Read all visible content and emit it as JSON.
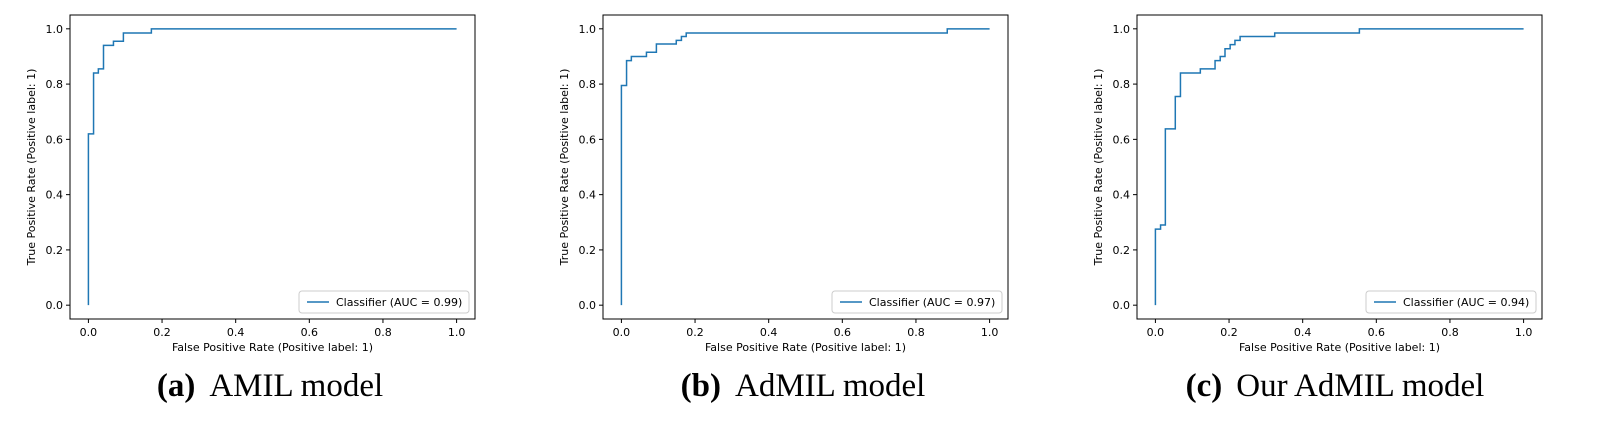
{
  "colors": {
    "curve": "#1f77b4",
    "axes": "#000000",
    "legend_border": "#cccccc"
  },
  "chart_data": [
    {
      "type": "line",
      "caption_letter": "(a)",
      "caption_text": "AMIL model",
      "xlabel": "False Positive Rate (Positive label: 1)",
      "ylabel": "True Positive Rate (Positive label: 1)",
      "xlim": [
        -0.05,
        1.05
      ],
      "ylim": [
        -0.05,
        1.05
      ],
      "xticks": [
        "0.0",
        "0.2",
        "0.4",
        "0.6",
        "0.8",
        "1.0"
      ],
      "yticks": [
        "0.0",
        "0.2",
        "0.4",
        "0.6",
        "0.8",
        "1.0"
      ],
      "grid": false,
      "legend_position": "lower right",
      "series": [
        {
          "name": "Classifier (AUC = 0.99)",
          "x": [
            0.0,
            0.0,
            0.014,
            0.014,
            0.027,
            0.027,
            0.041,
            0.041,
            0.068,
            0.068,
            0.095,
            0.095,
            0.171,
            0.171,
            1.0
          ],
          "y": [
            0.0,
            0.62,
            0.62,
            0.84,
            0.84,
            0.855,
            0.855,
            0.94,
            0.94,
            0.955,
            0.955,
            0.985,
            0.985,
            1.0,
            1.0
          ]
        }
      ]
    },
    {
      "type": "line",
      "caption_letter": "(b)",
      "caption_text": "AdMIL model",
      "xlabel": "False Positive Rate (Positive label: 1)",
      "ylabel": "True Positive Rate (Positive label: 1)",
      "xlim": [
        -0.05,
        1.05
      ],
      "ylim": [
        -0.05,
        1.05
      ],
      "xticks": [
        "0.0",
        "0.2",
        "0.4",
        "0.6",
        "0.8",
        "1.0"
      ],
      "yticks": [
        "0.0",
        "0.2",
        "0.4",
        "0.6",
        "0.8",
        "1.0"
      ],
      "grid": false,
      "legend_position": "lower right",
      "series": [
        {
          "name": "Classifier (AUC = 0.97)",
          "x": [
            0.0,
            0.0,
            0.014,
            0.014,
            0.027,
            0.027,
            0.068,
            0.068,
            0.095,
            0.095,
            0.149,
            0.149,
            0.163,
            0.163,
            0.176,
            0.176,
            0.885,
            0.885,
            1.0
          ],
          "y": [
            0.0,
            0.795,
            0.795,
            0.885,
            0.885,
            0.9,
            0.9,
            0.915,
            0.915,
            0.945,
            0.945,
            0.958,
            0.958,
            0.972,
            0.972,
            0.985,
            0.985,
            1.0,
            1.0
          ]
        }
      ]
    },
    {
      "type": "line",
      "caption_letter": "(c)",
      "caption_text": "Our AdMIL model",
      "xlabel": "False Positive Rate (Positive label: 1)",
      "ylabel": "True Positive Rate (Positive label: 1)",
      "xlim": [
        -0.05,
        1.05
      ],
      "ylim": [
        -0.05,
        1.05
      ],
      "xticks": [
        "0.0",
        "0.2",
        "0.4",
        "0.6",
        "0.8",
        "1.0"
      ],
      "yticks": [
        "0.0",
        "0.2",
        "0.4",
        "0.6",
        "0.8",
        "1.0"
      ],
      "grid": false,
      "legend_position": "lower right",
      "series": [
        {
          "name": "Classifier (AUC = 0.94)",
          "x": [
            0.0,
            0.0,
            0.014,
            0.014,
            0.027,
            0.027,
            0.054,
            0.054,
            0.068,
            0.068,
            0.122,
            0.122,
            0.162,
            0.162,
            0.176,
            0.176,
            0.189,
            0.189,
            0.203,
            0.203,
            0.216,
            0.216,
            0.23,
            0.23,
            0.243,
            0.243,
            0.324,
            0.324,
            0.554,
            0.554,
            1.0
          ],
          "y": [
            0.0,
            0.275,
            0.275,
            0.29,
            0.29,
            0.638,
            0.638,
            0.755,
            0.755,
            0.84,
            0.84,
            0.855,
            0.855,
            0.885,
            0.885,
            0.9,
            0.9,
            0.928,
            0.928,
            0.943,
            0.943,
            0.958,
            0.958,
            0.972,
            0.972,
            0.972,
            0.972,
            0.985,
            0.985,
            1.0,
            1.0
          ]
        }
      ]
    }
  ]
}
